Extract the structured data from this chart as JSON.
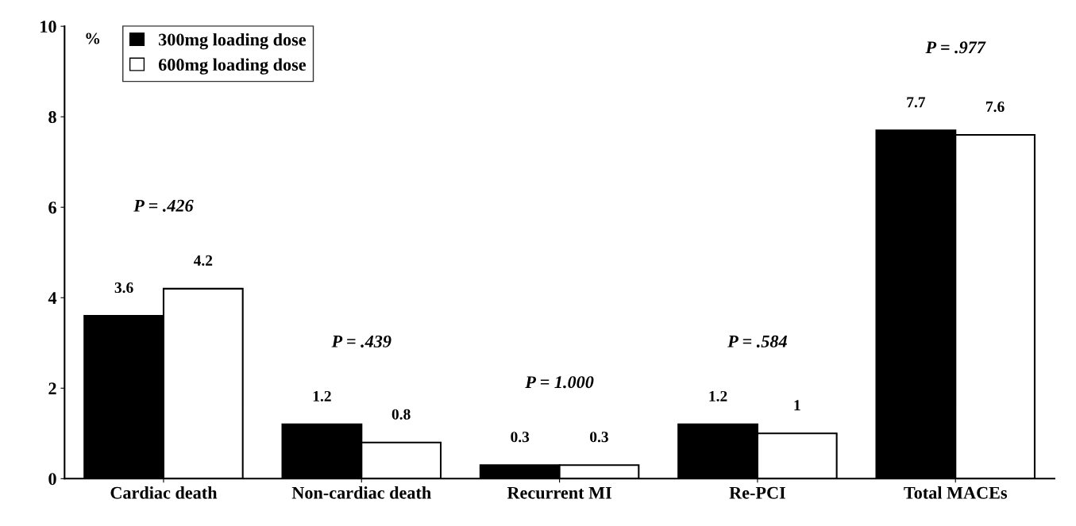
{
  "chart_data": {
    "type": "bar",
    "ylabel": "%",
    "categories": [
      "Cardiac death",
      "Non-cardiac death",
      "Recurrent MI",
      "Re-PCI",
      "Total MACEs"
    ],
    "series": [
      {
        "name": "300mg loading dose",
        "color": "#000000",
        "values": [
          3.6,
          1.2,
          0.3,
          1.2,
          7.7
        ]
      },
      {
        "name": "600mg loading dose",
        "color": "#ffffff",
        "values": [
          4.2,
          0.8,
          0.3,
          1,
          7.6
        ]
      }
    ],
    "ylim": [
      0,
      10
    ],
    "yticks": [
      0,
      2,
      4,
      6,
      8,
      10
    ],
    "data_labels": true,
    "grid": false,
    "legend": "top left",
    "annotations": [
      "P = .426",
      "P = .439",
      "P = 1.000",
      "P = .584",
      "P = .977"
    ]
  }
}
